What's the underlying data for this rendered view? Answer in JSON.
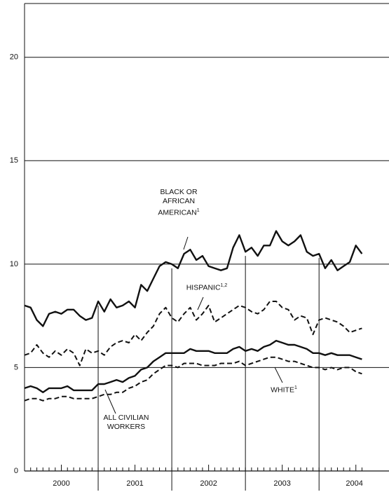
{
  "chart_data": {
    "type": "line",
    "xlim": [
      2000,
      2004.95
    ],
    "ylim": [
      0,
      22.6
    ],
    "yticks": [
      0,
      5,
      10,
      15,
      20
    ],
    "xticks": [
      {
        "value": 2000.5,
        "label": "2000"
      },
      {
        "value": 2001.5,
        "label": "2001"
      },
      {
        "value": 2002.5,
        "label": "2002"
      },
      {
        "value": 2003.5,
        "label": "2003"
      },
      {
        "value": 2004.48,
        "label": "2004"
      }
    ],
    "grid": true,
    "x": [
      2000,
      2000.083,
      2000.167,
      2000.25,
      2000.333,
      2000.417,
      2000.5,
      2000.583,
      2000.667,
      2000.75,
      2000.833,
      2000.917,
      2001,
      2001.083,
      2001.167,
      2001.25,
      2001.333,
      2001.417,
      2001.5,
      2001.583,
      2001.667,
      2001.75,
      2001.833,
      2001.917,
      2002,
      2002.083,
      2002.167,
      2002.25,
      2002.333,
      2002.417,
      2002.5,
      2002.583,
      2002.667,
      2002.75,
      2002.833,
      2002.917,
      2003,
      2003.083,
      2003.167,
      2003.25,
      2003.333,
      2003.417,
      2003.5,
      2003.583,
      2003.667,
      2003.75,
      2003.833,
      2003.917,
      2004,
      2004.083,
      2004.167,
      2004.25,
      2004.333,
      2004.417,
      2004.5,
      2004.583
    ],
    "series": [
      {
        "name": "BLACK OR AFRICAN AMERICAN",
        "footnote": "1",
        "color": "#111111",
        "dash": false,
        "values": [
          8.0,
          7.9,
          7.3,
          7.0,
          7.6,
          7.7,
          7.6,
          7.8,
          7.8,
          7.5,
          7.3,
          7.4,
          8.2,
          7.7,
          8.3,
          7.9,
          8.0,
          8.2,
          7.9,
          9.0,
          8.7,
          9.3,
          9.9,
          10.1,
          10.0,
          9.8,
          10.5,
          10.7,
          10.2,
          10.4,
          9.9,
          9.8,
          9.7,
          9.8,
          10.8,
          11.4,
          10.6,
          10.8,
          10.4,
          10.9,
          10.9,
          11.6,
          11.1,
          10.9,
          11.1,
          11.4,
          10.6,
          10.4,
          10.5,
          9.8,
          10.2,
          9.7,
          9.9,
          10.1,
          10.9,
          10.5
        ]
      },
      {
        "name": "HISPANIC",
        "footnote": "1,2",
        "color": "#111111",
        "dash": true,
        "values": [
          5.6,
          5.7,
          6.1,
          5.7,
          5.5,
          5.8,
          5.6,
          5.9,
          5.7,
          5.1,
          5.9,
          5.7,
          5.8,
          5.6,
          6.0,
          6.2,
          6.3,
          6.2,
          6.6,
          6.3,
          6.7,
          7.0,
          7.6,
          7.9,
          7.4,
          7.2,
          7.6,
          7.9,
          7.3,
          7.6,
          8.0,
          7.2,
          7.4,
          7.6,
          7.8,
          8.0,
          7.9,
          7.7,
          7.6,
          7.8,
          8.2,
          8.2,
          7.9,
          7.8,
          7.3,
          7.5,
          7.4,
          6.6,
          7.3,
          7.4,
          7.3,
          7.2,
          7.0,
          6.7,
          6.8,
          6.9
        ]
      },
      {
        "name": "ALL CIVILIAN WORKERS",
        "color": "#111111",
        "dash": false,
        "values": [
          4.0,
          4.1,
          4.0,
          3.8,
          4.0,
          4.0,
          4.0,
          4.1,
          3.9,
          3.9,
          3.9,
          3.9,
          4.2,
          4.2,
          4.3,
          4.4,
          4.3,
          4.5,
          4.6,
          4.9,
          5.0,
          5.3,
          5.5,
          5.7,
          5.7,
          5.7,
          5.7,
          5.9,
          5.8,
          5.8,
          5.8,
          5.7,
          5.7,
          5.7,
          5.9,
          6.0,
          5.8,
          5.9,
          5.8,
          6.0,
          6.1,
          6.3,
          6.2,
          6.1,
          6.1,
          6.0,
          5.9,
          5.7,
          5.7,
          5.6,
          5.7,
          5.6,
          5.6,
          5.6,
          5.5,
          5.4
        ]
      },
      {
        "name": "WHITE",
        "footnote": "1",
        "color": "#111111",
        "dash": true,
        "values": [
          3.4,
          3.5,
          3.5,
          3.4,
          3.5,
          3.5,
          3.6,
          3.6,
          3.5,
          3.5,
          3.5,
          3.5,
          3.6,
          3.7,
          3.7,
          3.8,
          3.8,
          4.0,
          4.1,
          4.3,
          4.4,
          4.7,
          4.9,
          5.1,
          5.1,
          5.0,
          5.2,
          5.2,
          5.2,
          5.1,
          5.1,
          5.1,
          5.2,
          5.2,
          5.2,
          5.3,
          5.1,
          5.2,
          5.3,
          5.4,
          5.5,
          5.5,
          5.4,
          5.3,
          5.3,
          5.2,
          5.1,
          5.0,
          5.0,
          4.9,
          5.0,
          4.9,
          5.0,
          5.0,
          4.8,
          4.7
        ]
      }
    ]
  }
}
